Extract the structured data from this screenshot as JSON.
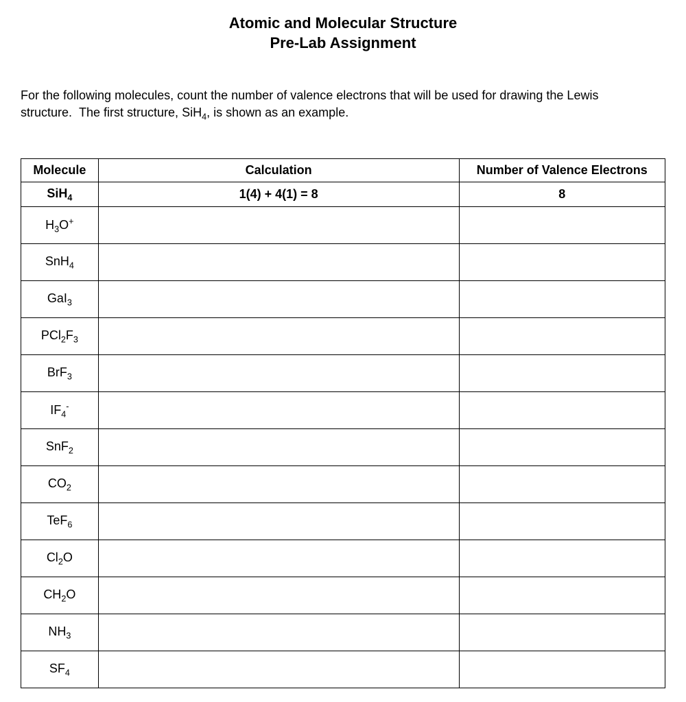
{
  "title": {
    "line1": "Atomic and Molecular Structure",
    "line2": "Pre-Lab Assignment"
  },
  "instructions": "For the following molecules, count the number of valence electrons that will be used for drawing the Lewis structure.  The first structure, SiH₄, is shown as an example.",
  "table": {
    "headers": {
      "molecule": "Molecule",
      "calculation": "Calculation",
      "valence": "Number of Valence Electrons"
    },
    "example": {
      "molecule_html": "SiH<sub>4</sub>",
      "calculation": "1(4) + 4(1) = 8",
      "valence": "8"
    },
    "rows": [
      {
        "molecule_html": "H<sub>3</sub>O<sup>+</sup>",
        "calculation": "",
        "valence": ""
      },
      {
        "molecule_html": "SnH<sub>4</sub>",
        "calculation": "",
        "valence": ""
      },
      {
        "molecule_html": "GaI<sub>3</sub>",
        "calculation": "",
        "valence": ""
      },
      {
        "molecule_html": "PCl<sub>2</sub>F<sub>3</sub>",
        "calculation": "",
        "valence": ""
      },
      {
        "molecule_html": "BrF<sub>3</sub>",
        "calculation": "",
        "valence": ""
      },
      {
        "molecule_html": "IF<sub>4</sub><sup>-</sup>",
        "calculation": "",
        "valence": ""
      },
      {
        "molecule_html": "SnF<sub>2</sub>",
        "calculation": "",
        "valence": ""
      },
      {
        "molecule_html": "CO<sub>2</sub>",
        "calculation": "",
        "valence": ""
      },
      {
        "molecule_html": "TeF<sub>6</sub>",
        "calculation": "",
        "valence": ""
      },
      {
        "molecule_html": "Cl<sub>2</sub>O",
        "calculation": "",
        "valence": ""
      },
      {
        "molecule_html": "CH<sub>2</sub>O",
        "calculation": "",
        "valence": ""
      },
      {
        "molecule_html": "NH<sub>3</sub>",
        "calculation": "",
        "valence": ""
      },
      {
        "molecule_html": "SF<sub>4</sub>",
        "calculation": "",
        "valence": ""
      }
    ]
  },
  "styling": {
    "background_color": "#ffffff",
    "text_color": "#000000",
    "border_color": "#000000",
    "title_fontsize": 22,
    "body_fontsize": 18,
    "header_row_height": 32,
    "example_row_height": 32,
    "data_row_height": 54,
    "col_widths": {
      "molecule": "12%",
      "calculation": "56%",
      "valence": "32%"
    }
  }
}
